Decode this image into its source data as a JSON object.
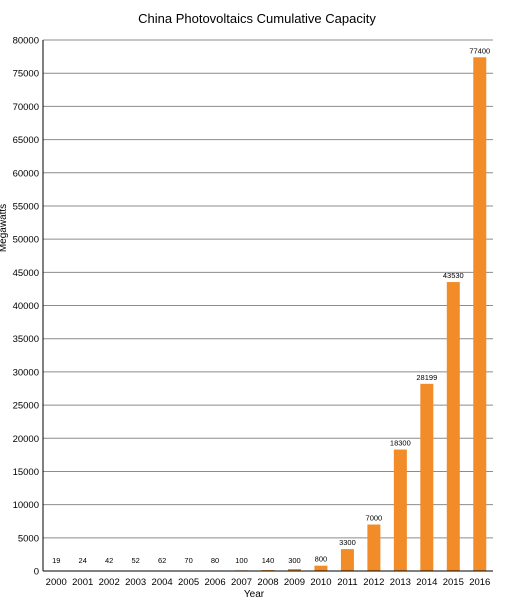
{
  "chart_data": {
    "type": "bar",
    "title": "China Photovoltaics Cumulative Capacity",
    "xlabel": "Year",
    "ylabel": "Megawatts",
    "categories": [
      "2000",
      "2001",
      "2002",
      "2003",
      "2004",
      "2005",
      "2006",
      "2007",
      "2008",
      "2009",
      "2010",
      "2011",
      "2012",
      "2013",
      "2014",
      "2015",
      "2016"
    ],
    "values": [
      19,
      24,
      42,
      52,
      62,
      70,
      80,
      100,
      140,
      300,
      800,
      3300,
      7000,
      18300,
      28199,
      43530,
      77400
    ],
    "data_labels": [
      "19",
      "24",
      "42",
      "52",
      "62",
      "70",
      "80",
      "100",
      "140",
      "300",
      "800",
      "3300",
      "7000",
      "18300",
      "28199",
      "43530",
      "77400"
    ],
    "ylim": [
      0,
      80000
    ],
    "yticks": [
      0,
      5000,
      10000,
      15000,
      20000,
      25000,
      30000,
      35000,
      40000,
      45000,
      50000,
      55000,
      60000,
      65000,
      70000,
      75000,
      80000
    ],
    "ytick_labels": [
      "0",
      "5000",
      "10000",
      "15000",
      "20000",
      "25000",
      "30000",
      "35000",
      "40000",
      "45000",
      "50000",
      "55000",
      "60000",
      "65000",
      "70000",
      "75000",
      "80000"
    ],
    "grid": true,
    "bar_color": "#f28c28",
    "grid_color": "#8c8c8c"
  }
}
